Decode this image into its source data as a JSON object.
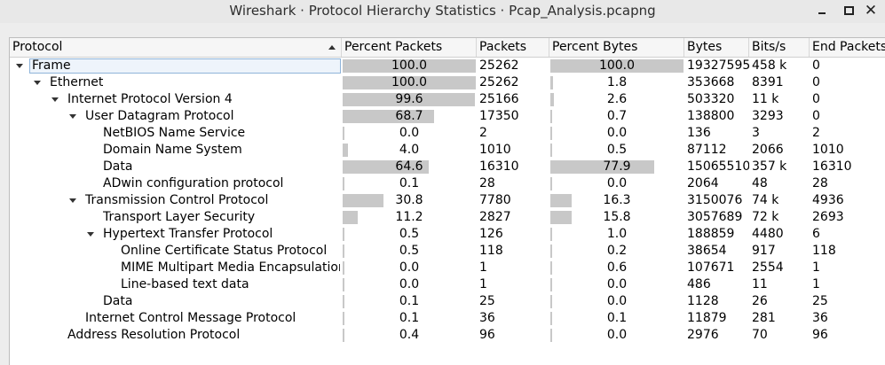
{
  "window": {
    "title": "Wireshark · Protocol Hierarchy Statistics · Pcap_Analysis.pcapng",
    "controls": [
      "minimize",
      "maximize",
      "close"
    ]
  },
  "columns": [
    "Protocol",
    "Percent Packets",
    "Packets",
    "Percent Bytes",
    "Bytes",
    "Bits/s",
    "End Packets"
  ],
  "rows": [
    {
      "protocol": "Frame",
      "depth": 0,
      "expanded": true,
      "pct_packets": "100.0",
      "packets": "25262",
      "pct_bytes": "100.0",
      "bytes": "19327595",
      "bits": "458 k",
      "end_packets": "0"
    },
    {
      "protocol": "Ethernet",
      "depth": 1,
      "expanded": true,
      "pct_packets": "100.0",
      "packets": "25262",
      "pct_bytes": "1.8",
      "bytes": "353668",
      "bits": "8391",
      "end_packets": "0"
    },
    {
      "protocol": "Internet Protocol Version 4",
      "depth": 2,
      "expanded": true,
      "pct_packets": "99.6",
      "packets": "25166",
      "pct_bytes": "2.6",
      "bytes": "503320",
      "bits": "11 k",
      "end_packets": "0"
    },
    {
      "protocol": "User Datagram Protocol",
      "depth": 3,
      "expanded": true,
      "pct_packets": "68.7",
      "packets": "17350",
      "pct_bytes": "0.7",
      "bytes": "138800",
      "bits": "3293",
      "end_packets": "0"
    },
    {
      "protocol": "NetBIOS Name Service",
      "depth": 4,
      "expanded": null,
      "pct_packets": "0.0",
      "packets": "2",
      "pct_bytes": "0.0",
      "bytes": "136",
      "bits": "3",
      "end_packets": "2"
    },
    {
      "protocol": "Domain Name System",
      "depth": 4,
      "expanded": null,
      "pct_packets": "4.0",
      "packets": "1010",
      "pct_bytes": "0.5",
      "bytes": "87112",
      "bits": "2066",
      "end_packets": "1010"
    },
    {
      "protocol": "Data",
      "depth": 4,
      "expanded": null,
      "pct_packets": "64.6",
      "packets": "16310",
      "pct_bytes": "77.9",
      "bytes": "15065510",
      "bits": "357 k",
      "end_packets": "16310"
    },
    {
      "protocol": "ADwin configuration protocol",
      "depth": 4,
      "expanded": null,
      "pct_packets": "0.1",
      "packets": "28",
      "pct_bytes": "0.0",
      "bytes": "2064",
      "bits": "48",
      "end_packets": "28"
    },
    {
      "protocol": "Transmission Control Protocol",
      "depth": 3,
      "expanded": true,
      "pct_packets": "30.8",
      "packets": "7780",
      "pct_bytes": "16.3",
      "bytes": "3150076",
      "bits": "74 k",
      "end_packets": "4936"
    },
    {
      "protocol": "Transport Layer Security",
      "depth": 4,
      "expanded": null,
      "pct_packets": "11.2",
      "packets": "2827",
      "pct_bytes": "15.8",
      "bytes": "3057689",
      "bits": "72 k",
      "end_packets": "2693"
    },
    {
      "protocol": "Hypertext Transfer Protocol",
      "depth": 4,
      "expanded": true,
      "pct_packets": "0.5",
      "packets": "126",
      "pct_bytes": "1.0",
      "bytes": "188859",
      "bits": "4480",
      "end_packets": "6"
    },
    {
      "protocol": "Online Certificate Status Protocol",
      "depth": 5,
      "expanded": null,
      "pct_packets": "0.5",
      "packets": "118",
      "pct_bytes": "0.2",
      "bytes": "38654",
      "bits": "917",
      "end_packets": "118"
    },
    {
      "protocol": "MIME Multipart Media Encapsulation",
      "depth": 5,
      "expanded": null,
      "pct_packets": "0.0",
      "packets": "1",
      "pct_bytes": "0.6",
      "bytes": "107671",
      "bits": "2554",
      "end_packets": "1"
    },
    {
      "protocol": "Line-based text data",
      "depth": 5,
      "expanded": null,
      "pct_packets": "0.0",
      "packets": "1",
      "pct_bytes": "0.0",
      "bytes": "486",
      "bits": "11",
      "end_packets": "1"
    },
    {
      "protocol": "Data",
      "depth": 4,
      "expanded": null,
      "pct_packets": "0.1",
      "packets": "25",
      "pct_bytes": "0.0",
      "bytes": "1128",
      "bits": "26",
      "end_packets": "25"
    },
    {
      "protocol": "Internet Control Message Protocol",
      "depth": 3,
      "expanded": null,
      "pct_packets": "0.1",
      "packets": "36",
      "pct_bytes": "0.1",
      "bytes": "11879",
      "bits": "281",
      "end_packets": "36"
    },
    {
      "protocol": "Address Resolution Protocol",
      "depth": 2,
      "expanded": null,
      "pct_packets": "0.4",
      "packets": "96",
      "pct_bytes": "0.0",
      "bytes": "2976",
      "bits": "70",
      "end_packets": "96"
    }
  ],
  "colors": {
    "bar": "#c8c8c8",
    "selection_border": "#8fb4d9"
  }
}
